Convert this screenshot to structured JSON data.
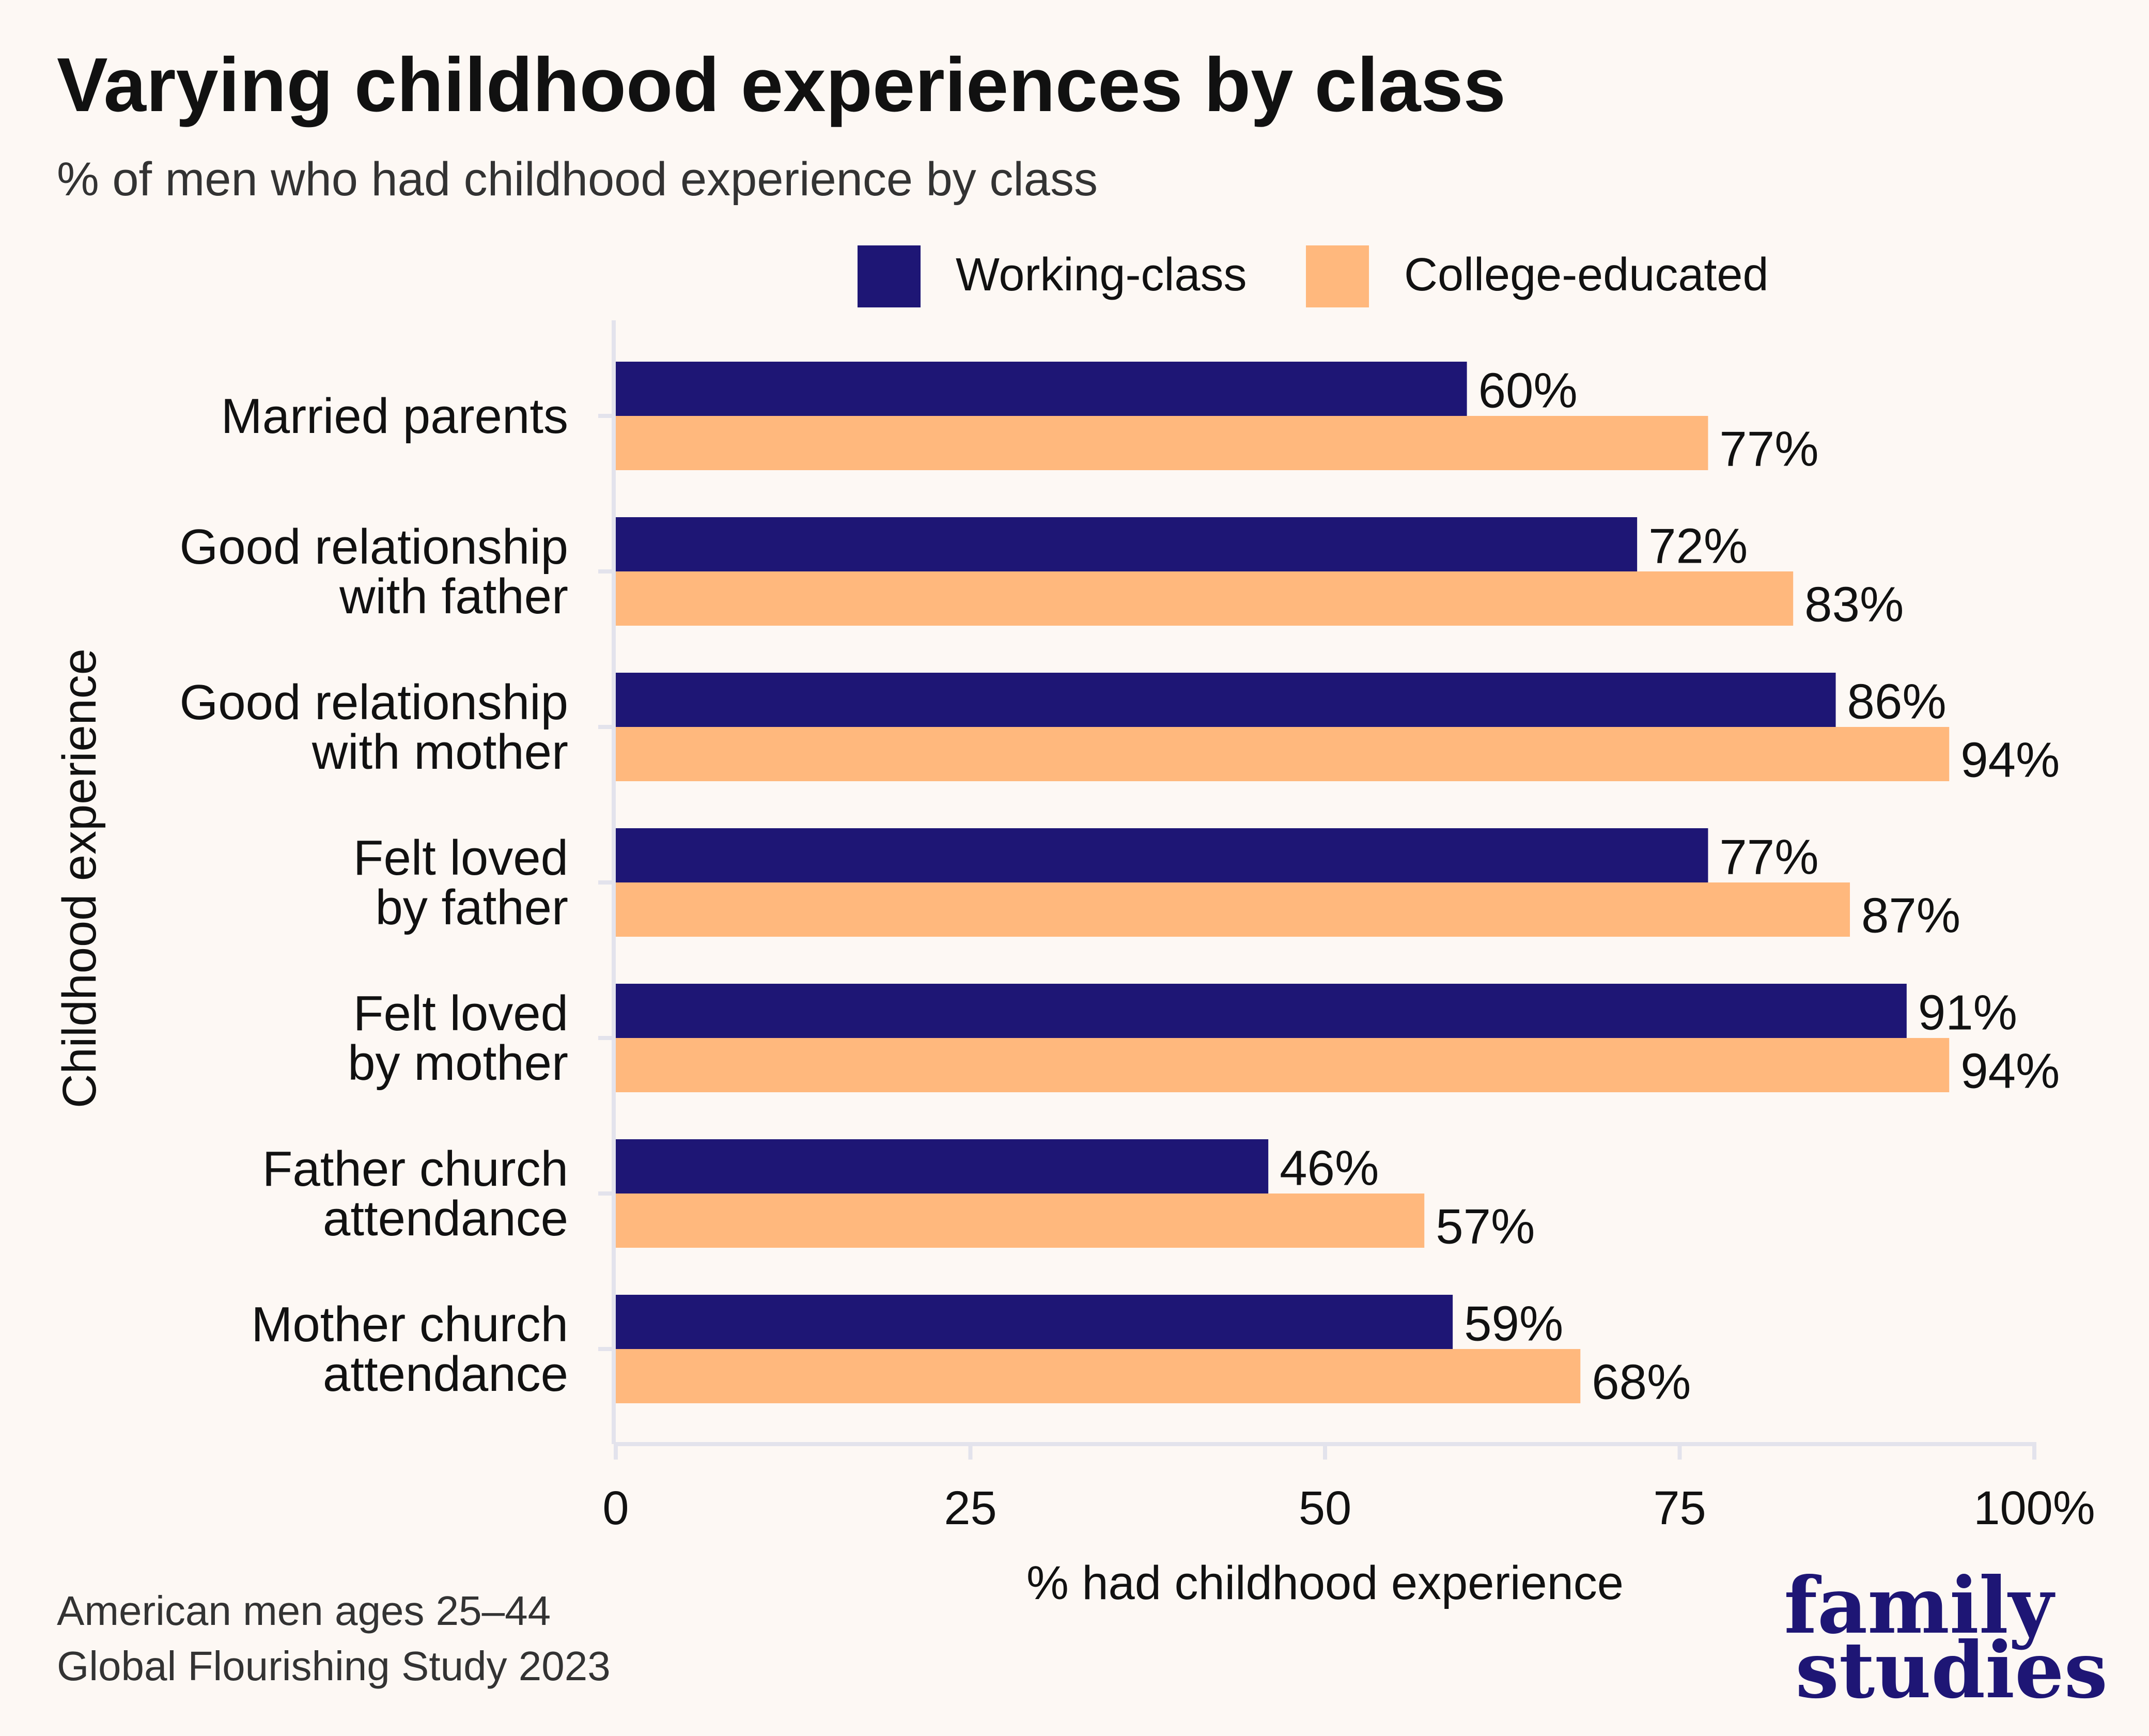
{
  "chart_data": {
    "type": "bar",
    "orientation": "horizontal",
    "title": "Varying childhood experiences by class",
    "subtitle": "% of men who had childhood experience by class",
    "xlabel": "% had childhood experience",
    "ylabel": "Childhood experience",
    "xlim": [
      0,
      100
    ],
    "xticks": [
      "0",
      "25",
      "50",
      "75",
      "100%"
    ],
    "categories": [
      "Married parents",
      "Good relationship with father",
      "Good relationship with mother",
      "Felt loved by father",
      "Felt loved by mother",
      "Father church attendance",
      "Mother church attendance"
    ],
    "category_lines": [
      [
        "Married parents"
      ],
      [
        "Good relationship",
        "with father"
      ],
      [
        "Good relationship",
        "with mother"
      ],
      [
        "Felt loved",
        "by father"
      ],
      [
        "Felt loved",
        "by mother"
      ],
      [
        "Father church",
        "attendance"
      ],
      [
        "Mother church",
        "attendance"
      ]
    ],
    "series": [
      {
        "name": "Working-class",
        "color": "#1e1675",
        "values": [
          60,
          72,
          86,
          77,
          91,
          46,
          59
        ]
      },
      {
        "name": "College-educated",
        "color": "#ffb87d",
        "values": [
          77,
          83,
          94,
          87,
          94,
          57,
          68
        ]
      }
    ],
    "value_suffix": "%",
    "legend_position": "top",
    "grid": false
  },
  "footer": {
    "notes": [
      "American men ages 25–44",
      "Global Flourishing Study 2023"
    ]
  },
  "logo": {
    "lines": [
      "family",
      "studies"
    ],
    "color": "#1e1675"
  },
  "colors": {
    "background": "#fdf8f4",
    "axis": "#e3e3ec",
    "text": "#111111"
  }
}
